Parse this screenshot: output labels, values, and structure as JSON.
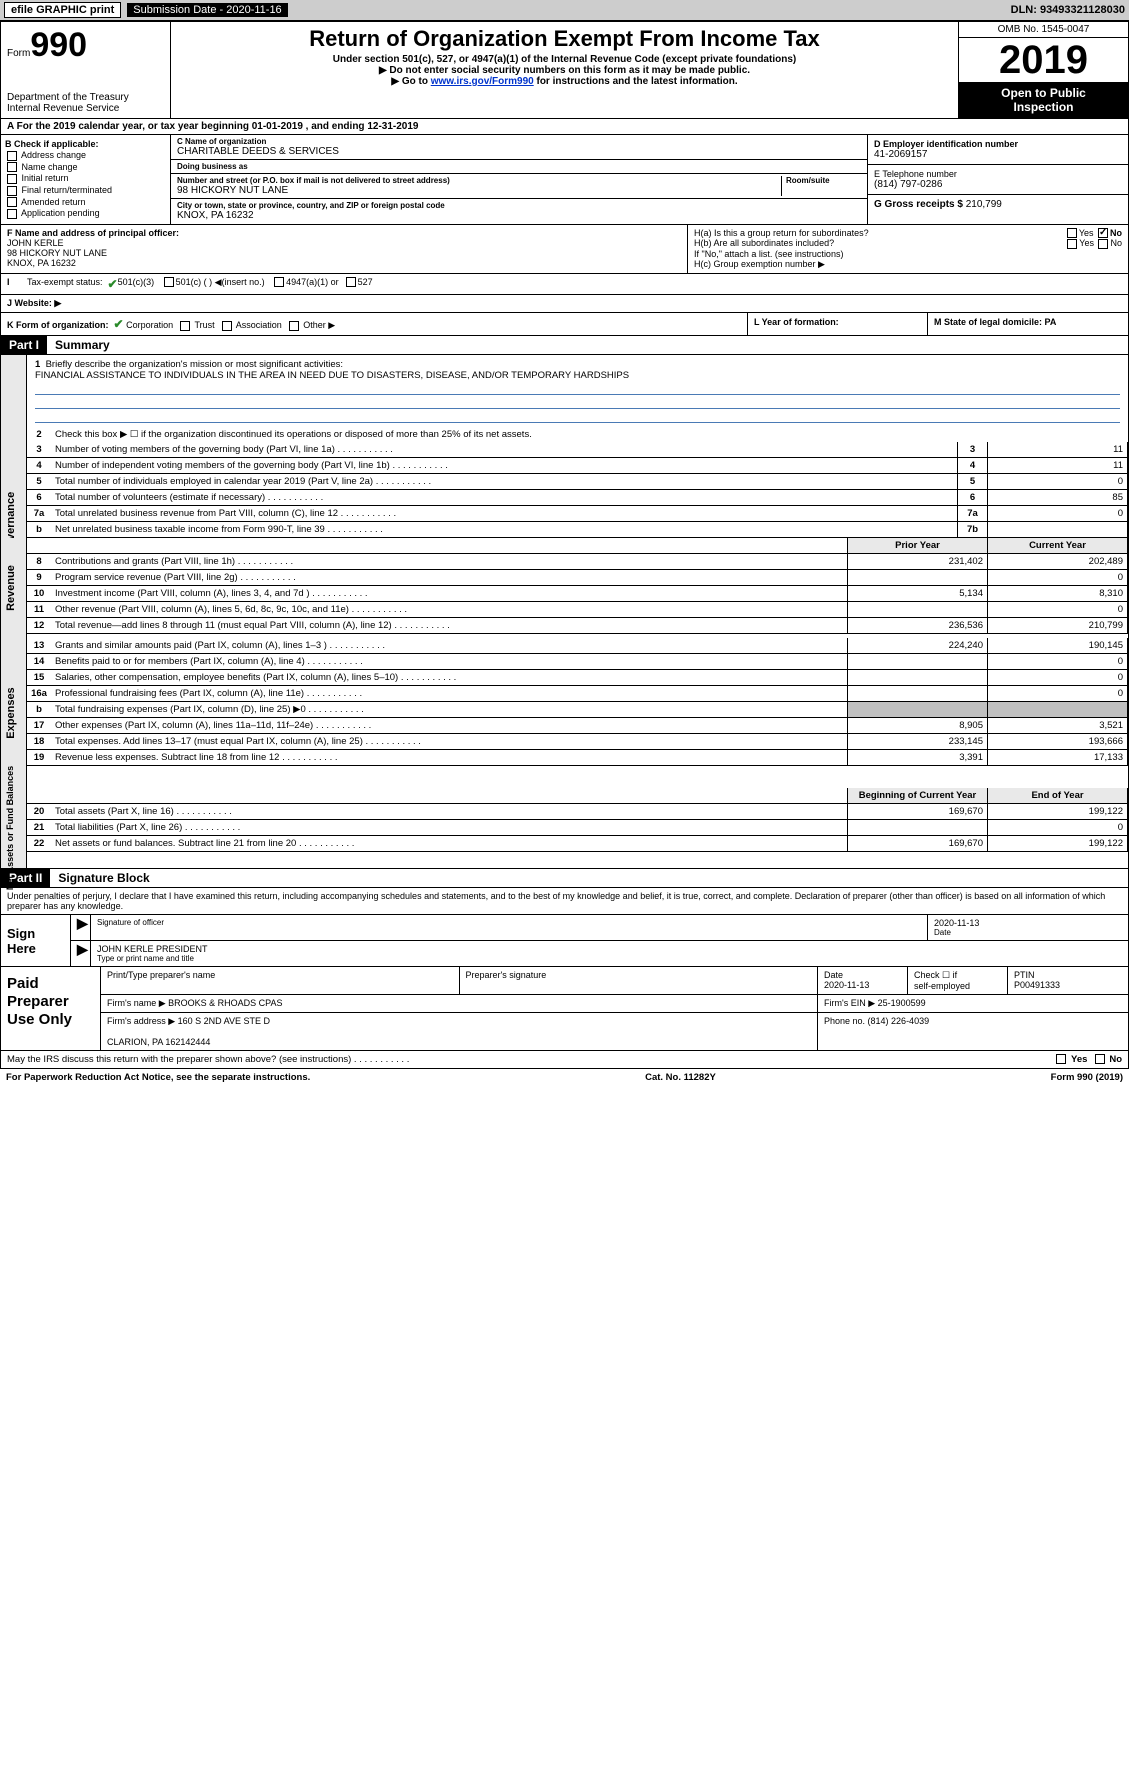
{
  "topBar": {
    "efile": "efile GRAPHIC print",
    "submission": "Submission Date - 2020-11-16",
    "dln": "DLN: 93493321128030"
  },
  "header": {
    "formWord": "Form",
    "formNum": "990",
    "dept": "Department of the Treasury\nInternal Revenue Service",
    "title": "Return of Organization Exempt From Income Tax",
    "sub1": "Under section 501(c), 527, or 4947(a)(1) of the Internal Revenue Code (except private foundations)",
    "sub2": "▶ Do not enter social security numbers on this form as it may be made public.",
    "sub3_pre": "▶ Go to ",
    "sub3_link": "www.irs.gov/Form990",
    "sub3_post": " for instructions and the latest information.",
    "omb": "OMB No. 1545-0047",
    "year": "2019",
    "open": "Open to Public\nInspection"
  },
  "periodRow": "A  For the 2019 calendar year, or tax year beginning 01-01-2019    , and ending 12-31-2019",
  "boxB": {
    "lbl": "B Check if applicable:",
    "items": [
      "Address change",
      "Name change",
      "Initial return",
      "Final return/terminated",
      "Amended return",
      "Application pending"
    ]
  },
  "boxC": {
    "nameLbl": "C Name of organization",
    "name": "CHARITABLE DEEDS & SERVICES",
    "dbaLbl": "Doing business as",
    "dba": "",
    "addrLbl": "Number and street (or P.O. box if mail is not delivered to street address)",
    "roomLbl": "Room/suite",
    "addr": "98 HICKORY NUT LANE",
    "cityLbl": "City or town, state or province, country, and ZIP or foreign postal code",
    "city": "KNOX, PA  16232"
  },
  "boxD": {
    "lbl": "D Employer identification number",
    "val": "41-2069157"
  },
  "boxE": {
    "lbl": "E Telephone number",
    "val": "(814) 797-0286"
  },
  "boxG": {
    "lbl": "G Gross receipts $",
    "val": "210,799"
  },
  "boxF": {
    "lbl": "F Name and address of principal officer:",
    "name": "JOHN KERLE",
    "addr": "98 HICKORY NUT LANE\nKNOX, PA  16232"
  },
  "boxH": {
    "ha": "H(a)   Is this a group return for subordinates?",
    "haAns": "No",
    "hb": "H(b)   Are all subordinates included?",
    "hbNote": "If \"No,\" attach a list. (see instructions)",
    "hc": "H(c)   Group exemption number ▶"
  },
  "boxI": {
    "lbl": "Tax-exempt status:",
    "o1": "501(c)(3)",
    "o2": "501(c) (    ) ◀(insert no.)",
    "o3": "4947(a)(1) or",
    "o4": "527"
  },
  "boxJ": {
    "lbl": "J    Website: ▶"
  },
  "boxK": {
    "lbl": "K Form of organization:",
    "o1": "Corporation",
    "o2": "Trust",
    "o3": "Association",
    "o4": "Other ▶"
  },
  "boxL": "L Year of formation:",
  "boxM": "M State of legal domicile: PA",
  "part1": {
    "hdr": "Part I",
    "title": "Summary"
  },
  "briefly": {
    "ln": "1",
    "lbl": "Briefly describe the organization's mission or most significant activities:",
    "txt": "FINANCIAL ASSISTANCE TO INDIVIDUALS IN THE AREA IN NEED DUE TO DISASTERS, DISEASE, AND/OR TEMPORARY HARDSHIPS"
  },
  "sideLabels": [
    "Activities & Governance",
    "Revenue",
    "Expenses",
    "Net Assets or Fund Balances"
  ],
  "govRows": [
    {
      "ln": "2",
      "desc": "Check this box ▶ ☐  if the organization discontinued its operations or disposed of more than 25% of its net assets.",
      "num": "",
      "val": ""
    },
    {
      "ln": "3",
      "desc": "Number of voting members of the governing body (Part VI, line 1a)",
      "num": "3",
      "val": "11"
    },
    {
      "ln": "4",
      "desc": "Number of independent voting members of the governing body (Part VI, line 1b)",
      "num": "4",
      "val": "11"
    },
    {
      "ln": "5",
      "desc": "Total number of individuals employed in calendar year 2019 (Part V, line 2a)",
      "num": "5",
      "val": "0"
    },
    {
      "ln": "6",
      "desc": "Total number of volunteers (estimate if necessary)",
      "num": "6",
      "val": "85"
    },
    {
      "ln": "7a",
      "desc": "Total unrelated business revenue from Part VIII, column (C), line 12",
      "num": "7a",
      "val": "0"
    },
    {
      "ln": "b",
      "desc": "Net unrelated business taxable income from Form 990-T, line 39",
      "num": "7b",
      "val": ""
    }
  ],
  "twoColHdr": {
    "prior": "Prior Year",
    "current": "Current Year"
  },
  "revRows": [
    {
      "ln": "8",
      "desc": "Contributions and grants (Part VIII, line 1h)",
      "p": "231,402",
      "c": "202,489"
    },
    {
      "ln": "9",
      "desc": "Program service revenue (Part VIII, line 2g)",
      "p": "",
      "c": "0"
    },
    {
      "ln": "10",
      "desc": "Investment income (Part VIII, column (A), lines 3, 4, and 7d )",
      "p": "5,134",
      "c": "8,310"
    },
    {
      "ln": "11",
      "desc": "Other revenue (Part VIII, column (A), lines 5, 6d, 8c, 9c, 10c, and 11e)",
      "p": "",
      "c": "0"
    },
    {
      "ln": "12",
      "desc": "Total revenue—add lines 8 through 11 (must equal Part VIII, column (A), line 12)",
      "p": "236,536",
      "c": "210,799"
    }
  ],
  "expRows": [
    {
      "ln": "13",
      "desc": "Grants and similar amounts paid (Part IX, column (A), lines 1–3 )",
      "p": "224,240",
      "c": "190,145"
    },
    {
      "ln": "14",
      "desc": "Benefits paid to or for members (Part IX, column (A), line 4)",
      "p": "",
      "c": "0"
    },
    {
      "ln": "15",
      "desc": "Salaries, other compensation, employee benefits (Part IX, column (A), lines 5–10)",
      "p": "",
      "c": "0"
    },
    {
      "ln": "16a",
      "desc": "Professional fundraising fees (Part IX, column (A), line 11e)",
      "p": "",
      "c": "0"
    },
    {
      "ln": "b",
      "desc": "Total fundraising expenses (Part IX, column (D), line 25) ▶0",
      "p": "GREY",
      "c": "GREY"
    },
    {
      "ln": "17",
      "desc": "Other expenses (Part IX, column (A), lines 11a–11d, 11f–24e)",
      "p": "8,905",
      "c": "3,521"
    },
    {
      "ln": "18",
      "desc": "Total expenses. Add lines 13–17 (must equal Part IX, column (A), line 25)",
      "p": "233,145",
      "c": "193,666"
    },
    {
      "ln": "19",
      "desc": "Revenue less expenses. Subtract line 18 from line 12",
      "p": "3,391",
      "c": "17,133"
    }
  ],
  "nafHdr": {
    "prior": "Beginning of Current Year",
    "current": "End of Year"
  },
  "nafRows": [
    {
      "ln": "20",
      "desc": "Total assets (Part X, line 16)",
      "p": "169,670",
      "c": "199,122"
    },
    {
      "ln": "21",
      "desc": "Total liabilities (Part X, line 26)",
      "p": "",
      "c": "0"
    },
    {
      "ln": "22",
      "desc": "Net assets or fund balances. Subtract line 21 from line 20",
      "p": "169,670",
      "c": "199,122"
    }
  ],
  "part2": {
    "hdr": "Part II",
    "title": "Signature Block"
  },
  "sig": {
    "decl": "Under penalties of perjury, I declare that I have examined this return, including accompanying schedules and statements, and to the best of my knowledge and belief, it is true, correct, and complete. Declaration of preparer (other than officer) is based on all information of which preparer has any knowledge.",
    "signHere": "Sign\nHere",
    "sigLbl": "Signature of officer",
    "date": "2020-11-13",
    "dateLbl": "Date",
    "name": "JOHN KERLE  PRESIDENT",
    "nameLbl": "Type or print name and title"
  },
  "paid": {
    "label": "Paid\nPreparer\nUse Only",
    "r1": {
      "c1": "Print/Type preparer's name",
      "c2": "Preparer's signature",
      "c3": "Date\n2020-11-13",
      "c4": "Check ☐ if\nself-employed",
      "c5": "PTIN\nP00491333"
    },
    "r2": {
      "c1": "Firm's name      ▶ BROOKS & RHOADS CPAS",
      "c2": "Firm's EIN ▶ 25-1900599"
    },
    "r3": {
      "c1": "Firm's address ▶ 160 S 2ND AVE STE D\n\n                              CLARION, PA  162142444",
      "c2": "Phone no. (814) 226-4039"
    }
  },
  "discuss": {
    "txt": "May the IRS discuss this return with the preparer shown above? (see instructions)",
    "yes": "Yes",
    "no": "No"
  },
  "footer": {
    "left": "For Paperwork Reduction Act Notice, see the separate instructions.",
    "mid": "Cat. No. 11282Y",
    "right": "Form 990 (2019)"
  },
  "colors": {
    "link": "#0033cc",
    "greyBg": "#cdcdcd",
    "lightGrey": "#e9e9e9",
    "cellGrey": "#c0c0c0",
    "underline": "#4a7ab5",
    "check": "#2a8a2a"
  }
}
